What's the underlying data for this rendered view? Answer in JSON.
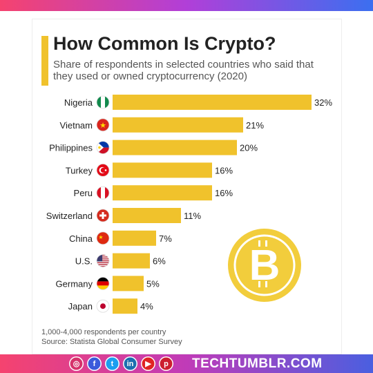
{
  "header": {
    "title": "How Common Is Crypto?",
    "subtitle": "Share of respondents in selected countries who said that they used or owned cryptocurrency (2020)"
  },
  "chart_data": {
    "type": "bar",
    "orientation": "horizontal",
    "categories": [
      "Nigeria",
      "Vietnam",
      "Philippines",
      "Turkey",
      "Peru",
      "Switzerland",
      "China",
      "U.S.",
      "Germany",
      "Japan"
    ],
    "values": [
      32,
      21,
      20,
      16,
      16,
      11,
      7,
      6,
      5,
      4
    ],
    "value_labels": [
      "32%",
      "21%",
      "20%",
      "16%",
      "16%",
      "11%",
      "7%",
      "6%",
      "5%",
      "4%"
    ],
    "bar_color": "#f0c22c",
    "xlim": [
      0,
      32
    ],
    "grid": false,
    "legend": "none"
  },
  "flags": [
    "nigeria-flag-icon",
    "vietnam-flag-icon",
    "philippines-flag-icon",
    "turkey-flag-icon",
    "peru-flag-icon",
    "switzerland-flag-icon",
    "china-flag-icon",
    "us-flag-icon",
    "germany-flag-icon",
    "japan-flag-icon"
  ],
  "decor": {
    "coin_icon": "bitcoin-coin-icon",
    "coin_color": "#f2cd3c"
  },
  "footer": {
    "note": "1,000-4,000 respondents per country",
    "source": "Source: Statista Global Consumer Survey"
  },
  "socials": [
    {
      "icon": "instagram-icon",
      "glyph": "◎",
      "color": "#d6336c"
    },
    {
      "icon": "facebook-icon",
      "glyph": "f",
      "color": "#3b5bdb"
    },
    {
      "icon": "twitter-icon",
      "glyph": "t",
      "color": "#1c9ef0"
    },
    {
      "icon": "linkedin-icon",
      "glyph": "in",
      "color": "#1c6fb0"
    },
    {
      "icon": "youtube-icon",
      "glyph": "▶",
      "color": "#e02424"
    },
    {
      "icon": "pinterest-icon",
      "glyph": "p",
      "color": "#cc1f2f"
    }
  ],
  "brand": "TECHTUMBLR.COM"
}
